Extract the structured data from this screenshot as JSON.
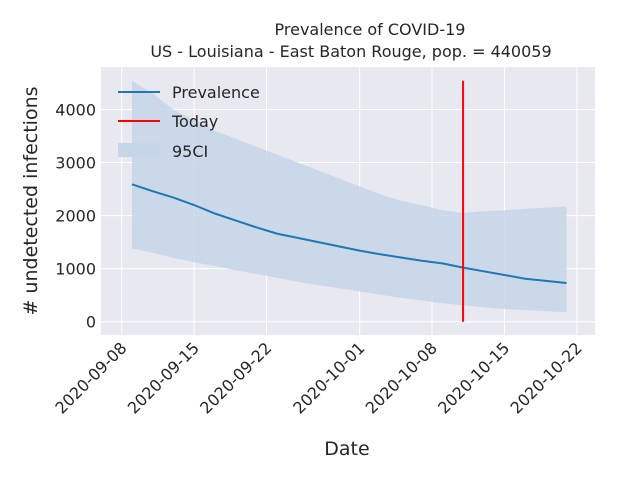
{
  "chart_data": {
    "type": "line",
    "title": "Prevalence of COVID-19",
    "subtitle": "US - Louisiana - East Baton Rouge, pop. = 440059",
    "xlabel": "Date",
    "ylabel": "# undetected infections",
    "x_ticks": [
      "2020-09-08",
      "2020-09-15",
      "2020-09-22",
      "2020-10-01",
      "2020-10-08",
      "2020-10-15",
      "2020-10-22"
    ],
    "y_ticks": [
      0,
      1000,
      2000,
      3000,
      4000
    ],
    "ylim": [
      -250,
      4800
    ],
    "grid": true,
    "legend_position": "top-left",
    "legend": [
      "Prevalence",
      "Today",
      "95CI"
    ],
    "colors": {
      "prevalence": "#1f77b4",
      "today": "#ff0000",
      "ci": "#c6d5e8",
      "background": "#e8e8f0",
      "grid": "#ffffff"
    },
    "today": {
      "date": "2020-10-11",
      "y_range": [
        0,
        4540
      ]
    },
    "series": [
      {
        "name": "Prevalence",
        "points": [
          [
            "2020-09-09",
            2590
          ],
          [
            "2020-09-11",
            2460
          ],
          [
            "2020-09-13",
            2340
          ],
          [
            "2020-09-15",
            2200
          ],
          [
            "2020-09-17",
            2040
          ],
          [
            "2020-09-19",
            1910
          ],
          [
            "2020-09-21",
            1780
          ],
          [
            "2020-09-23",
            1660
          ],
          [
            "2020-09-25",
            1580
          ],
          [
            "2020-09-27",
            1500
          ],
          [
            "2020-09-29",
            1420
          ],
          [
            "2020-10-01",
            1340
          ],
          [
            "2020-10-03",
            1270
          ],
          [
            "2020-10-05",
            1210
          ],
          [
            "2020-10-07",
            1150
          ],
          [
            "2020-10-09",
            1100
          ],
          [
            "2020-10-11",
            1020
          ],
          [
            "2020-10-13",
            950
          ],
          [
            "2020-10-15",
            880
          ],
          [
            "2020-10-17",
            810
          ],
          [
            "2020-10-19",
            770
          ],
          [
            "2020-10-21",
            730
          ]
        ]
      },
      {
        "name": "95CI",
        "upper": [
          [
            "2020-09-09",
            4540
          ],
          [
            "2020-09-11",
            4300
          ],
          [
            "2020-09-13",
            4000
          ],
          [
            "2020-09-15",
            3800
          ],
          [
            "2020-09-17",
            3600
          ],
          [
            "2020-09-19",
            3450
          ],
          [
            "2020-09-21",
            3300
          ],
          [
            "2020-09-23",
            3150
          ],
          [
            "2020-09-25",
            3000
          ],
          [
            "2020-09-27",
            2850
          ],
          [
            "2020-09-29",
            2700
          ],
          [
            "2020-10-01",
            2550
          ],
          [
            "2020-10-03",
            2400
          ],
          [
            "2020-10-05",
            2280
          ],
          [
            "2020-10-07",
            2200
          ],
          [
            "2020-10-09",
            2100
          ],
          [
            "2020-10-11",
            2050
          ],
          [
            "2020-10-13",
            2080
          ],
          [
            "2020-10-15",
            2100
          ],
          [
            "2020-10-17",
            2130
          ],
          [
            "2020-10-19",
            2150
          ],
          [
            "2020-10-21",
            2170
          ]
        ],
        "lower": [
          [
            "2020-09-09",
            1380
          ],
          [
            "2020-09-11",
            1300
          ],
          [
            "2020-09-13",
            1200
          ],
          [
            "2020-09-15",
            1120
          ],
          [
            "2020-09-17",
            1050
          ],
          [
            "2020-09-19",
            970
          ],
          [
            "2020-09-21",
            900
          ],
          [
            "2020-09-23",
            830
          ],
          [
            "2020-09-25",
            750
          ],
          [
            "2020-09-27",
            690
          ],
          [
            "2020-09-29",
            630
          ],
          [
            "2020-10-01",
            570
          ],
          [
            "2020-10-03",
            510
          ],
          [
            "2020-10-05",
            450
          ],
          [
            "2020-10-07",
            400
          ],
          [
            "2020-10-09",
            350
          ],
          [
            "2020-10-11",
            310
          ],
          [
            "2020-10-13",
            270
          ],
          [
            "2020-10-15",
            240
          ],
          [
            "2020-10-17",
            220
          ],
          [
            "2020-10-19",
            200
          ],
          [
            "2020-10-21",
            180
          ]
        ]
      }
    ]
  }
}
